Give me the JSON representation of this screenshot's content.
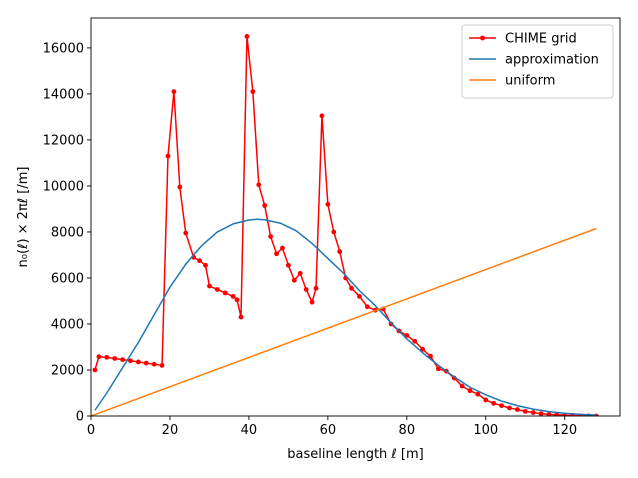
{
  "chart_data": {
    "type": "line",
    "title": "",
    "xlabel": "baseline length ℓ [m]",
    "ylabel": "n₀(ℓ) × 2πℓ [/m]",
    "xlim": [
      0,
      134
    ],
    "ylim": [
      0,
      17300
    ],
    "xticks": [
      0,
      20,
      40,
      60,
      80,
      100,
      120
    ],
    "yticks": [
      0,
      2000,
      4000,
      6000,
      8000,
      10000,
      12000,
      14000,
      16000
    ],
    "legend_position": "top-right",
    "series": [
      {
        "name": "CHIME grid",
        "color": "#ff0000",
        "marker": true,
        "x": [
          1,
          2,
          4,
          6,
          8,
          10,
          12,
          14,
          16,
          18,
          19.5,
          21,
          22.5,
          24,
          26,
          27.5,
          29,
          30,
          32,
          34,
          36,
          37,
          38,
          39.5,
          41,
          42.5,
          44,
          45.5,
          47,
          48.5,
          50,
          51.5,
          53,
          54.5,
          56,
          57,
          58.5,
          60,
          61.5,
          63,
          64.5,
          66,
          68,
          70,
          72,
          74,
          76,
          78,
          80,
          82,
          84,
          86,
          88,
          90,
          92,
          94,
          96,
          98,
          100,
          102,
          104,
          106,
          108,
          110,
          112,
          114,
          116,
          118,
          120,
          122,
          124,
          126,
          128
        ],
        "values": [
          2000,
          2580,
          2550,
          2500,
          2450,
          2400,
          2350,
          2300,
          2250,
          2200,
          11300,
          14100,
          9950,
          7950,
          6900,
          6750,
          6550,
          5650,
          5500,
          5350,
          5200,
          5050,
          4300,
          16500,
          14100,
          10050,
          9150,
          7800,
          7050,
          7300,
          6550,
          5900,
          6200,
          5500,
          4950,
          5550,
          13050,
          9200,
          8000,
          7150,
          6000,
          5550,
          5200,
          4750,
          4600,
          4650,
          4000,
          3700,
          3500,
          3250,
          2900,
          2600,
          2050,
          1950,
          1650,
          1300,
          1100,
          950,
          700,
          550,
          450,
          350,
          280,
          200,
          150,
          100,
          70,
          50,
          30,
          20,
          10,
          5,
          0
        ]
      },
      {
        "name": "approximation",
        "color": "#1f77b4",
        "marker": false,
        "x": [
          1,
          4,
          8,
          12,
          16,
          20,
          24,
          28,
          32,
          36,
          40,
          42,
          44,
          48,
          52,
          56,
          60,
          64,
          68,
          72,
          76,
          80,
          84,
          88,
          92,
          96,
          100,
          104,
          108,
          112,
          116,
          120,
          124,
          128
        ],
        "values": [
          250,
          1000,
          2100,
          3200,
          4400,
          5600,
          6600,
          7400,
          8000,
          8350,
          8520,
          8550,
          8530,
          8380,
          8050,
          7500,
          6850,
          6200,
          5450,
          4800,
          4050,
          3350,
          2750,
          2200,
          1700,
          1250,
          920,
          650,
          450,
          300,
          190,
          120,
          70,
          40
        ]
      },
      {
        "name": "uniform",
        "color": "#ff7f0e",
        "marker": false,
        "x": [
          0,
          128
        ],
        "values": [
          0,
          8150
        ]
      }
    ]
  }
}
